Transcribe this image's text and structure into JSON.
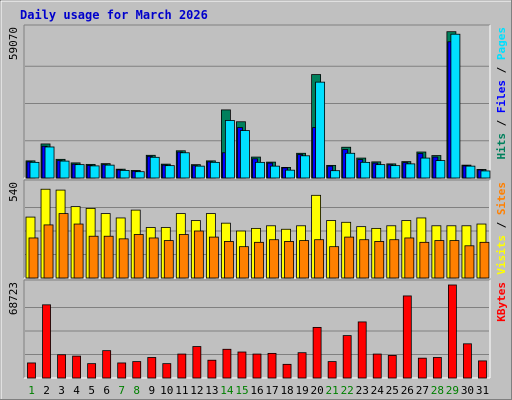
{
  "chart_data": {
    "type": "bar",
    "title": "Daily usage for March 2026",
    "categories": [
      "1",
      "2",
      "3",
      "4",
      "5",
      "6",
      "7",
      "8",
      "9",
      "10",
      "11",
      "12",
      "13",
      "14",
      "15",
      "16",
      "17",
      "18",
      "19",
      "20",
      "21",
      "22",
      "23",
      "24",
      "25",
      "26",
      "27",
      "28",
      "29",
      "30",
      "31"
    ],
    "weekend_days": [
      "1",
      "7",
      "8",
      "14",
      "15",
      "21",
      "22",
      "28",
      "29"
    ],
    "panels": [
      {
        "id": "hits",
        "max_label": "59070",
        "ymax": 59070,
        "grid": true,
        "legend": [
          {
            "name": "Hits",
            "color": "#00805c"
          },
          {
            "name": "Files",
            "color": "#0000ff"
          },
          {
            "name": "Pages",
            "color": "#00e0ff"
          }
        ],
        "series": [
          {
            "name": "Hits",
            "color": "#00805c",
            "values": [
              6800,
              13500,
              7400,
              6000,
              5400,
              5700,
              3500,
              3000,
              9000,
              5500,
              10800,
              5300,
              6800,
              27000,
              22300,
              8300,
              6300,
              4200,
              9800,
              41000,
              5000,
              12200,
              7900,
              6400,
              5600,
              6500,
              10300,
              8900,
              58000,
              5100,
              3400
            ]
          },
          {
            "name": "Files",
            "color": "#0000ff",
            "values": [
              6400,
              12600,
              6900,
              5500,
              5000,
              5300,
              3200,
              2700,
              8600,
              5100,
              10300,
              4900,
              6400,
              10000,
              20000,
              7600,
              5900,
              4000,
              9300,
              20000,
              4700,
              11300,
              7300,
              5900,
              5200,
              6100,
              9700,
              8300,
              54000,
              4800,
              3200
            ]
          },
          {
            "name": "Pages",
            "color": "#00e0ff",
            "values": [
              6200,
              12300,
              6700,
              5300,
              4800,
              5100,
              3000,
              2500,
              8200,
              4900,
              10000,
              4700,
              6200,
              22800,
              18800,
              6200,
              4700,
              3100,
              8800,
              38000,
              2900,
              9800,
              6200,
              5300,
              4900,
              5600,
              7900,
              6900,
              57000,
              4700,
              2800
            ]
          }
        ]
      },
      {
        "id": "visits",
        "max_label": "540",
        "ymax": 540,
        "grid": true,
        "legend": [
          {
            "name": "Visits",
            "color": "#ffff00"
          },
          {
            "name": "Sites",
            "color": "#ff8000"
          }
        ],
        "series": [
          {
            "name": "Visits",
            "color": "#ffff00",
            "values": [
              350,
              510,
              505,
              410,
              400,
              370,
              345,
              390,
              290,
              290,
              370,
              330,
              370,
              315,
              270,
              285,
              300,
              280,
              300,
              475,
              330,
              320,
              295,
              285,
              300,
              330,
              345,
              300,
              300,
              300,
              310
            ]
          },
          {
            "name": "Sites",
            "color": "#ff8000",
            "values": [
              230,
              305,
              370,
              310,
              240,
              240,
              225,
              250,
              230,
              215,
              250,
              270,
              235,
              210,
              180,
              205,
              220,
              210,
              215,
              220,
              180,
              235,
              220,
              210,
              220,
              230,
              205,
              215,
              215,
              185,
              205
            ]
          }
        ]
      },
      {
        "id": "kbytes",
        "max_label": "68723",
        "ymax": 68723,
        "grid": true,
        "legend": [
          {
            "name": "KBytes",
            "color": "#ff0000"
          }
        ],
        "series": [
          {
            "name": "KBytes",
            "color": "#ff0000",
            "values": [
              11000,
              53500,
              17000,
              16000,
              10500,
              20000,
              11000,
              12000,
              15000,
              10500,
              17500,
              23000,
              13000,
              21000,
              19000,
              17500,
              18000,
              10000,
              18500,
              37000,
              12000,
              31000,
              41000,
              17500,
              16500,
              60000,
              14500,
              15000,
              68000,
              25000,
              12500
            ]
          }
        ]
      }
    ]
  }
}
